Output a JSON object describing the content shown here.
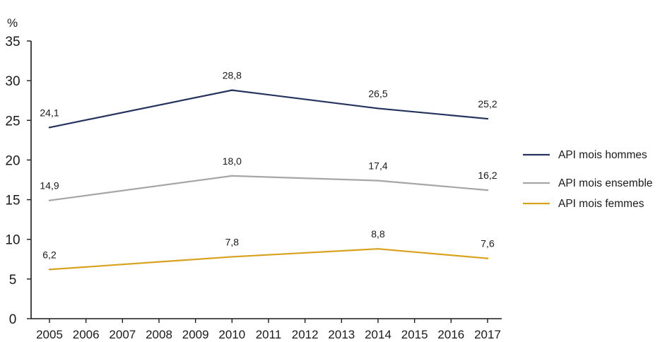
{
  "chart_data": {
    "type": "line",
    "ylabel": "%",
    "ylim": [
      0,
      35
    ],
    "yticks": [
      0,
      5,
      10,
      15,
      20,
      25,
      30,
      35
    ],
    "x": [
      "2005",
      "2006",
      "2007",
      "2008",
      "2009",
      "2010",
      "2011",
      "2012",
      "2013",
      "2014",
      "2015",
      "2016",
      "2017"
    ],
    "grid": false,
    "legend_position": "right",
    "series": [
      {
        "name": "API mois hommes",
        "color": "#24325e",
        "points": [
          {
            "x": "2005",
            "y": 24.1,
            "label": "24,1"
          },
          {
            "x": "2010",
            "y": 28.8,
            "label": "28,8"
          },
          {
            "x": "2014",
            "y": 26.5,
            "label": "26,5"
          },
          {
            "x": "2017",
            "y": 25.2,
            "label": "25,2"
          }
        ]
      },
      {
        "name": "API mois ensemble",
        "color": "#a6a6a6",
        "points": [
          {
            "x": "2005",
            "y": 14.9,
            "label": "14,9"
          },
          {
            "x": "2010",
            "y": 18.0,
            "label": "18,0"
          },
          {
            "x": "2014",
            "y": 17.4,
            "label": "17,4"
          },
          {
            "x": "2017",
            "y": 16.2,
            "label": "16,2"
          }
        ]
      },
      {
        "name": "API mois femmes",
        "color": "#d8a21f",
        "points": [
          {
            "x": "2005",
            "y": 6.2,
            "label": "6,2"
          },
          {
            "x": "2010",
            "y": 7.8,
            "label": "7,8"
          },
          {
            "x": "2014",
            "y": 8.8,
            "label": "8,8"
          },
          {
            "x": "2017",
            "y": 7.6,
            "label": "7,6"
          }
        ]
      }
    ]
  }
}
